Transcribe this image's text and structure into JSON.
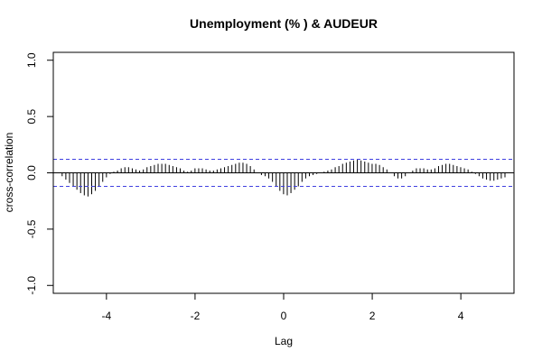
{
  "chart_data": {
    "type": "bar",
    "title": "Unemployment (% ) & AUDEUR",
    "xlabel": "Lag",
    "ylabel": "cross-correlation",
    "xlim": [
      -5.2,
      5.2
    ],
    "ylim": [
      -1.07,
      1.07
    ],
    "x_ticks": [
      -4,
      -2,
      0,
      2,
      4
    ],
    "x_tick_labels": [
      "-4",
      "-2",
      "0",
      "2",
      "4"
    ],
    "y_ticks": [
      -1.0,
      -0.5,
      0.0,
      0.5,
      1.0
    ],
    "y_tick_labels": [
      "-1.0",
      "-0.5",
      "0.0",
      "0.5",
      "1.0"
    ],
    "confidence_bounds": [
      0.12,
      -0.12
    ],
    "grid": false,
    "colors": {
      "bars": "#000000",
      "bounds": "#4040e0",
      "zero": "#000000"
    },
    "lag_start": -5.0,
    "lag_step": 0.0833,
    "values": [
      -0.03,
      -0.06,
      -0.09,
      -0.12,
      -0.15,
      -0.18,
      -0.2,
      -0.21,
      -0.19,
      -0.16,
      -0.12,
      -0.08,
      -0.04,
      -0.01,
      0.01,
      0.02,
      0.04,
      0.05,
      0.05,
      0.04,
      0.03,
      0.02,
      0.03,
      0.05,
      0.06,
      0.07,
      0.08,
      0.08,
      0.08,
      0.07,
      0.06,
      0.05,
      0.04,
      0.02,
      0.01,
      0.02,
      0.04,
      0.04,
      0.04,
      0.03,
      0.02,
      0.02,
      0.03,
      0.04,
      0.05,
      0.06,
      0.07,
      0.08,
      0.09,
      0.09,
      0.08,
      0.06,
      0.03,
      0.0,
      -0.02,
      -0.03,
      -0.05,
      -0.08,
      -0.12,
      -0.16,
      -0.19,
      -0.2,
      -0.18,
      -0.15,
      -0.12,
      -0.08,
      -0.05,
      -0.03,
      -0.02,
      -0.01,
      0.0,
      0.01,
      0.02,
      0.03,
      0.05,
      0.06,
      0.08,
      0.09,
      0.1,
      0.11,
      0.12,
      0.11,
      0.1,
      0.09,
      0.08,
      0.08,
      0.07,
      0.05,
      0.03,
      0.0,
      -0.03,
      -0.05,
      -0.05,
      -0.03,
      0.0,
      0.02,
      0.04,
      0.04,
      0.04,
      0.03,
      0.03,
      0.04,
      0.06,
      0.07,
      0.08,
      0.08,
      0.07,
      0.06,
      0.05,
      0.04,
      0.03,
      0.01,
      -0.01,
      -0.03,
      -0.05,
      -0.06,
      -0.07,
      -0.07,
      -0.06,
      -0.05,
      -0.04
    ]
  }
}
